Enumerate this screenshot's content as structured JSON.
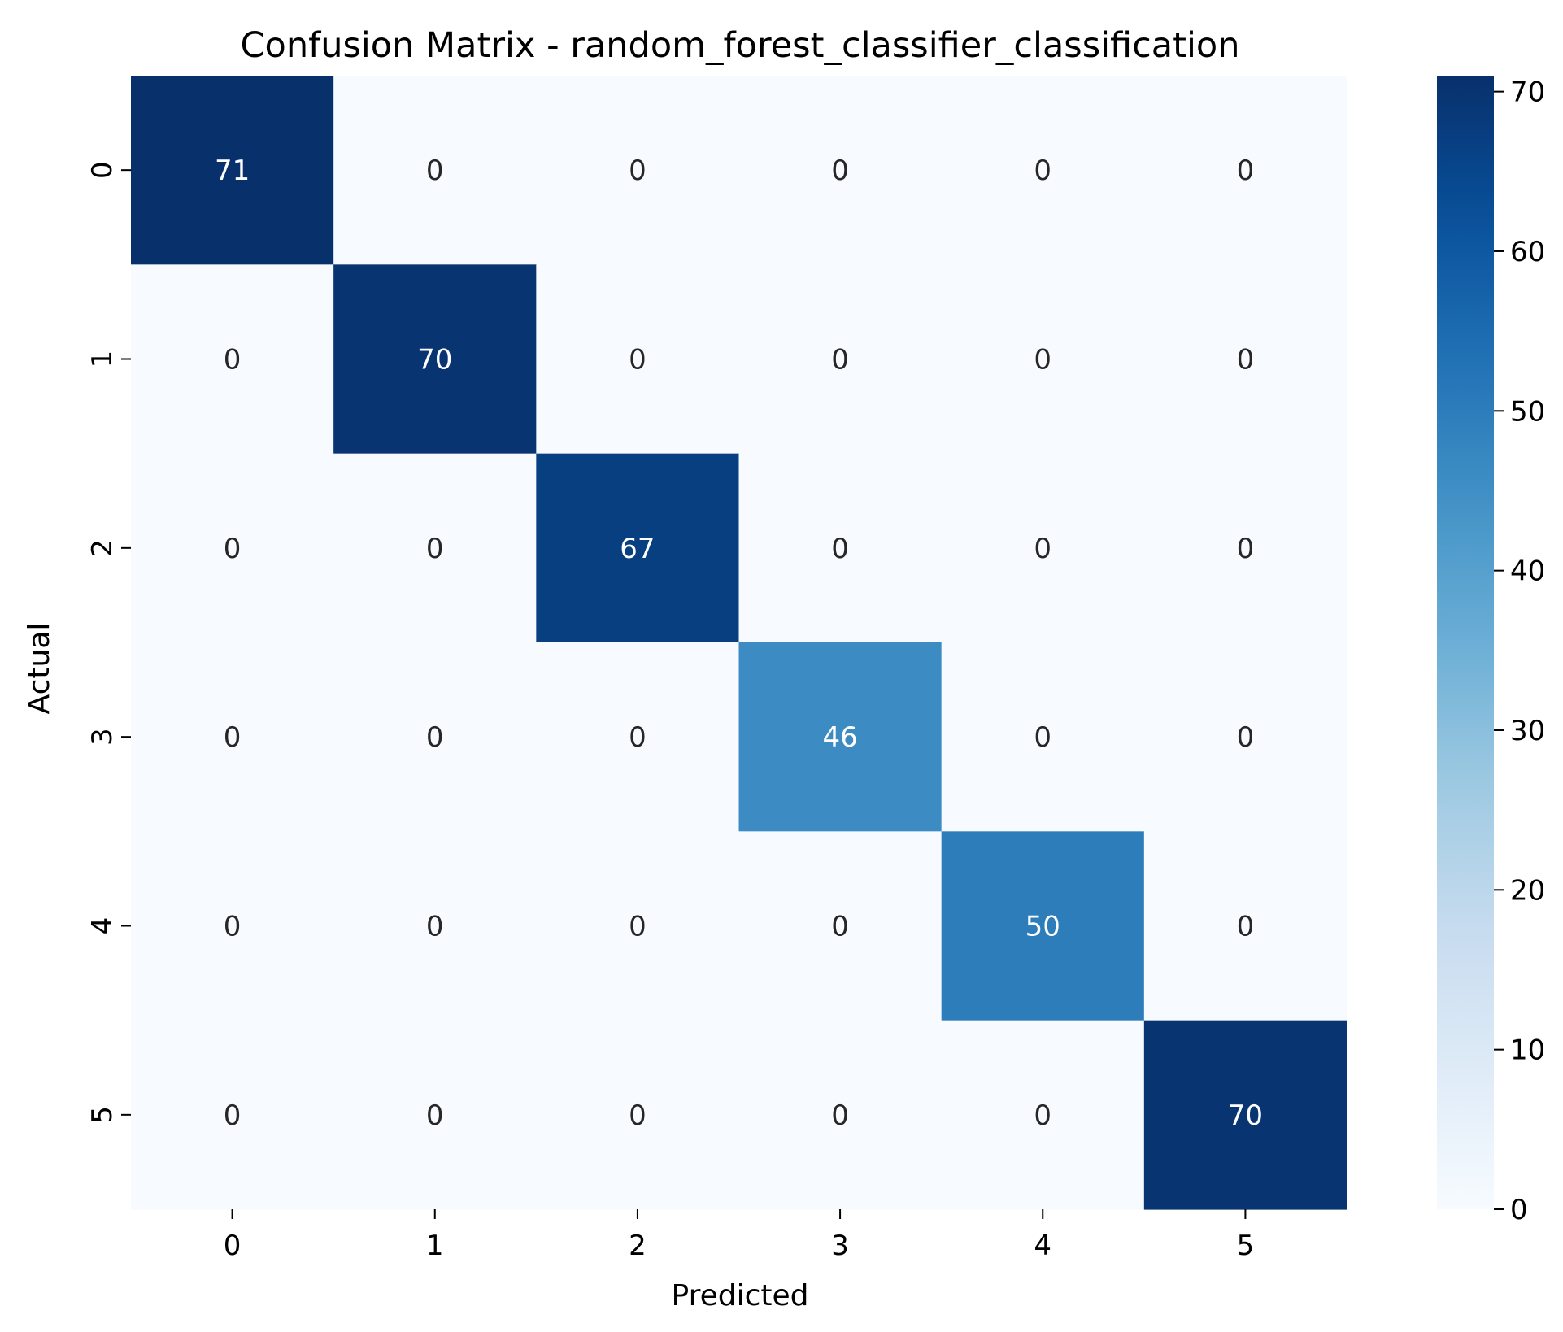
{
  "chart_data": {
    "type": "heatmap",
    "title": "Confusion Matrix - random_forest_classifier_classification",
    "xlabel": "Predicted",
    "ylabel": "Actual",
    "x_categories": [
      "0",
      "1",
      "2",
      "3",
      "4",
      "5"
    ],
    "y_categories": [
      "0",
      "1",
      "2",
      "3",
      "4",
      "5"
    ],
    "values": [
      [
        71,
        0,
        0,
        0,
        0,
        0
      ],
      [
        0,
        70,
        0,
        0,
        0,
        0
      ],
      [
        0,
        0,
        67,
        0,
        0,
        0
      ],
      [
        0,
        0,
        0,
        46,
        0,
        0
      ],
      [
        0,
        0,
        0,
        0,
        50,
        0
      ],
      [
        0,
        0,
        0,
        0,
        0,
        70
      ]
    ],
    "colormap": "Blues",
    "color_low": "#f7fbff",
    "color_high": "#08306b",
    "vmin": 0,
    "vmax": 71,
    "colorbar_ticks": [
      0,
      10,
      20,
      30,
      40,
      50,
      60,
      70
    ],
    "colorbar_tick_labels": [
      "0",
      "10",
      "20",
      "30",
      "40",
      "50",
      "60",
      "70"
    ],
    "annotations": true,
    "grid": false,
    "colorbar_position": "right"
  }
}
